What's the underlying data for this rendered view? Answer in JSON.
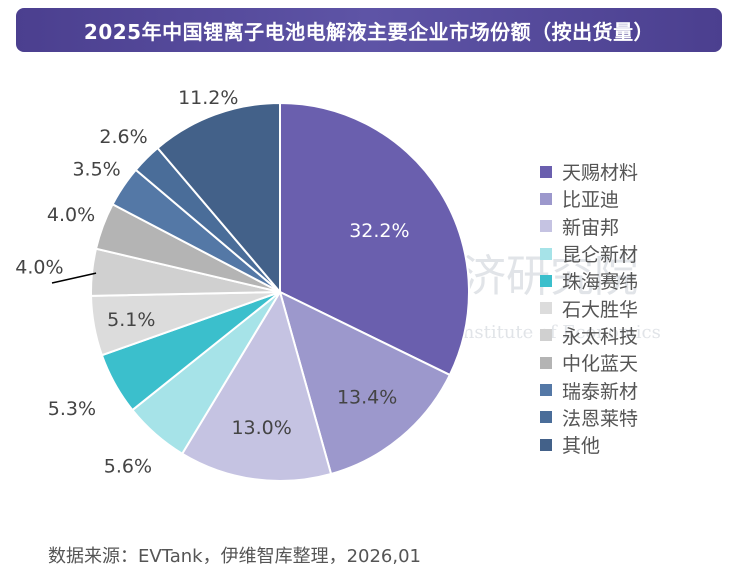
{
  "chart_data": {
    "type": "pie",
    "title": "2025年中国锂离子电池电解液主要企业市场份额（按出货量）",
    "legend_position": "right",
    "start_angle": "top, clockwise",
    "slices": [
      {
        "label": "天赐材料",
        "value": 32.2,
        "display": "32.2%",
        "color": "#6a5fae"
      },
      {
        "label": "比亚迪",
        "value": 13.4,
        "display": "13.4%",
        "color": "#9c98cc"
      },
      {
        "label": "新宙邦",
        "value": 13.0,
        "display": "13.0%",
        "color": "#c5c3e2"
      },
      {
        "label": "昆仑新材",
        "value": 5.6,
        "display": "5.6%",
        "color": "#a6e3e8"
      },
      {
        "label": "珠海赛纬",
        "value": 5.3,
        "display": "5.3%",
        "color": "#3bbfcc"
      },
      {
        "label": "石大胜华",
        "value": 5.1,
        "display": "5.1%",
        "color": "#dcdcdc"
      },
      {
        "label": "永太科技",
        "value": 4.0,
        "display": "4.0%",
        "color": "#d0d0d0"
      },
      {
        "label": "中化蓝天",
        "value": 4.0,
        "display": "4.0%",
        "color": "#b4b4b4"
      },
      {
        "label": "瑞泰新材",
        "value": 3.5,
        "display": "3.5%",
        "color": "#5478a6"
      },
      {
        "label": "法恩莱特",
        "value": 2.6,
        "display": "2.6%",
        "color": "#4a6d99"
      },
      {
        "label": "其他",
        "value": 11.2,
        "display": "11.2%",
        "color": "#436189"
      }
    ]
  },
  "source": "数据来源：EVTank，伊维智库整理，2026,01",
  "watermark": {
    "cn": "伊维经济研究院",
    "en": "China YiWei Institute of Economics"
  }
}
